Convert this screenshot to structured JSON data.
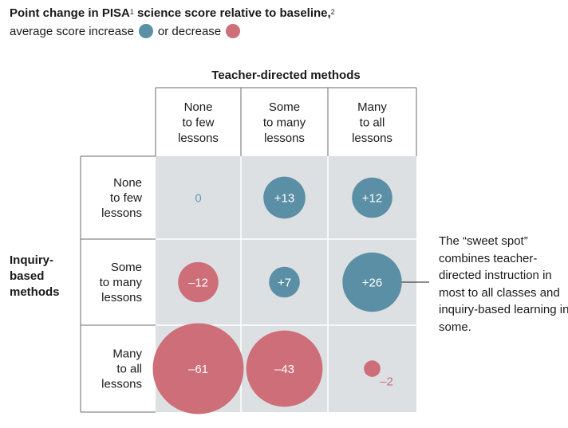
{
  "title": {
    "text": "Point change in PISA",
    "sup1": "1",
    "text2": " science score relative to baseline,",
    "sup2": "2"
  },
  "legend": {
    "label_increase": "average score increase",
    "label_decrease": "or decrease",
    "increase_color": "#5b8fa5",
    "decrease_color": "#cd6e78"
  },
  "colors": {
    "cell_background": "#dce0e3",
    "grid_line": "#ffffff",
    "zero_label": "#6a9bb0"
  },
  "callout": {
    "text": "The “sweet spot” combines teacher-directed instruction in most to all classes and inquiry-based learning in some."
  },
  "chart_data": {
    "type": "bubble-matrix",
    "column_axis_label": "Teacher-directed methods",
    "row_axis_label": [
      "Inquiry-",
      "based",
      "methods"
    ],
    "columns": [
      [
        "None",
        "to few",
        "lessons"
      ],
      [
        "Some",
        "to many",
        "lessons"
      ],
      [
        "Many",
        "to all",
        "lessons"
      ]
    ],
    "rows": [
      [
        "None",
        "to few",
        "lessons"
      ],
      [
        "Some",
        "to many",
        "lessons"
      ],
      [
        "Many",
        "to all",
        "lessons"
      ]
    ],
    "values": [
      [
        0,
        13,
        12
      ],
      [
        -12,
        7,
        26
      ],
      [
        -61,
        -43,
        -2
      ]
    ],
    "labels": [
      [
        "0",
        "+13",
        "+12"
      ],
      [
        "–12",
        "+7",
        "+26"
      ],
      [
        "–61",
        "–43",
        "–2"
      ]
    ]
  }
}
